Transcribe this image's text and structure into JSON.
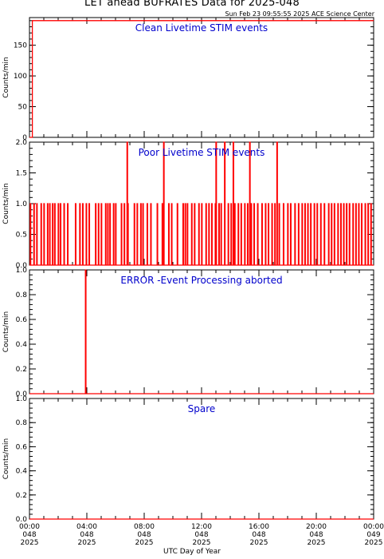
{
  "title": "LET ahead BUFRATES Data for 2025-048",
  "timestamp": "Sun Feb 23 09:55:55 2025 ACE Science Center",
  "xaxis_title": "UTC Day of Year",
  "colors": {
    "trace": "#ff0000",
    "panel_title": "#0000cc",
    "axes": "#000000"
  },
  "chart_data": [
    {
      "type": "line",
      "title": "Clean Livetime STIM events",
      "ylabel": "Counts/min",
      "ylim": [
        0,
        195
      ],
      "yticks": [
        0,
        50,
        100,
        150
      ],
      "ytick_labels": [
        "0",
        "50",
        "100",
        "150"
      ],
      "xlim": [
        0,
        24
      ],
      "series": [
        {
          "x": [
            0,
            0.2,
            0.2,
            24
          ],
          "y": [
            0,
            0,
            190,
            190
          ]
        }
      ]
    },
    {
      "type": "line",
      "title": "Poor Livetime STIM events",
      "ylabel": "Counts/min",
      "ylim": [
        0,
        2.0
      ],
      "yticks": [
        0.0,
        0.5,
        1.0,
        1.5,
        2.0
      ],
      "ytick_labels": [
        "0.0",
        "0.5",
        "1.0",
        "1.5",
        "2.0"
      ],
      "xlim": [
        0,
        24
      ],
      "pulses_value_1": [
        0.05,
        0.3,
        0.5,
        0.8,
        1.0,
        1.25,
        1.4,
        1.6,
        1.75,
        2.0,
        2.15,
        2.4,
        2.65,
        3.2,
        3.5,
        3.7,
        3.95,
        4.15,
        4.6,
        4.8,
        5.0,
        5.3,
        5.45,
        5.6,
        5.85,
        6.0,
        6.4,
        6.6,
        6.85,
        7.3,
        7.5,
        7.75,
        7.9,
        8.2,
        8.45,
        8.9,
        9.25,
        9.7,
        9.9,
        10.3,
        10.7,
        10.85,
        11.0,
        11.3,
        11.5,
        11.8,
        12.0,
        12.3,
        12.5,
        12.7,
        12.95,
        13.2,
        13.35,
        13.6,
        13.85,
        14.05,
        14.3,
        14.55,
        14.75,
        15.0,
        15.2,
        15.45,
        15.65,
        15.9,
        16.2,
        16.45,
        16.65,
        16.9,
        17.1,
        17.4,
        17.7,
        18.0,
        18.2,
        18.5,
        18.75,
        19.0,
        19.2,
        19.4,
        19.6,
        19.85,
        20.05,
        20.3,
        20.55,
        20.85,
        21.05,
        21.25,
        21.5,
        21.7,
        21.9,
        22.1,
        22.3,
        22.55,
        22.75,
        22.95,
        23.15,
        23.4,
        23.6,
        23.8
      ],
      "pulses_value_2": [
        6.8,
        9.35,
        13.0,
        13.6,
        14.2,
        15.35,
        17.25
      ]
    },
    {
      "type": "line",
      "title": "ERROR -Event Processing aborted",
      "ylabel": "Counts/min",
      "ylim": [
        0,
        1.0
      ],
      "yticks": [
        0.0,
        0.2,
        0.4,
        0.6,
        0.8,
        1.0
      ],
      "ytick_labels": [
        "0.0",
        "0.2",
        "0.4",
        "0.6",
        "0.8",
        "1.0"
      ],
      "xlim": [
        0,
        24
      ],
      "pulses_value_1": [
        3.9
      ]
    },
    {
      "type": "line",
      "title": "Spare",
      "ylabel": "Counts/min",
      "ylim": [
        0,
        1.0
      ],
      "yticks": [
        0.0,
        0.2,
        0.4,
        0.6,
        0.8,
        1.0
      ],
      "ytick_labels": [
        "0.0",
        "0.2",
        "0.4",
        "0.6",
        "0.8",
        "1.0"
      ],
      "xlim": [
        0,
        24
      ],
      "pulses_value_1": []
    }
  ],
  "x_ticks": [
    {
      "hours": 0,
      "label": [
        "00:00",
        "048",
        "2025"
      ]
    },
    {
      "hours": 4,
      "label": [
        "04:00",
        "048",
        "2025"
      ]
    },
    {
      "hours": 8,
      "label": [
        "08:00",
        "048",
        "2025"
      ]
    },
    {
      "hours": 12,
      "label": [
        "12:00",
        "048",
        "2025"
      ]
    },
    {
      "hours": 16,
      "label": [
        "16:00",
        "048",
        "2025"
      ]
    },
    {
      "hours": 20,
      "label": [
        "20:00",
        "048",
        "2025"
      ]
    },
    {
      "hours": 24,
      "label": [
        "00:00",
        "049",
        "2025"
      ]
    }
  ]
}
